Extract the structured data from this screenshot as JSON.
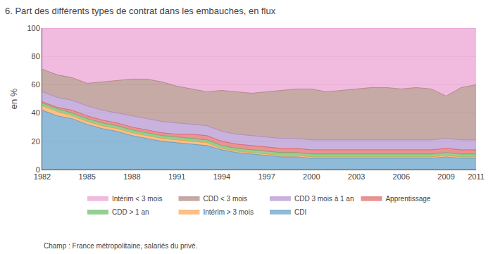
{
  "chart_data": {
    "type": "area",
    "stacked": true,
    "title": "6. Part des différents types de contrat dans les embauches, en flux",
    "ylabel": "en %",
    "annotations": [
      "Champ : France métropolitaine, salariés du privé."
    ],
    "x": [
      1982,
      1983,
      1984,
      1985,
      1986,
      1987,
      1988,
      1989,
      1990,
      1991,
      1992,
      1993,
      1994,
      1995,
      1996,
      1997,
      1998,
      1999,
      2000,
      2001,
      2002,
      2003,
      2004,
      2005,
      2006,
      2007,
      2008,
      2009,
      2010,
      2011
    ],
    "series": [
      {
        "name": "CDI",
        "values": [
          42,
          38,
          36,
          32,
          29,
          27,
          24,
          22,
          20,
          19,
          18,
          17,
          14,
          12,
          11,
          10,
          9,
          9,
          8,
          8,
          8,
          8,
          8,
          8,
          8,
          8,
          8,
          9,
          8,
          8
        ]
      },
      {
        "name": "Intérim > 3 mois",
        "values": [
          3,
          3,
          2,
          2,
          2,
          2,
          2,
          2,
          2,
          2,
          2,
          2,
          1,
          1,
          1,
          1,
          1,
          1,
          1,
          1,
          1,
          1,
          1,
          1,
          1,
          1,
          1,
          1,
          1,
          1
        ]
      },
      {
        "name": "CDD > 1 an",
        "values": [
          2,
          2,
          2,
          2,
          2,
          2,
          2,
          2,
          2,
          2,
          2,
          2,
          2,
          2,
          2,
          2,
          2,
          2,
          2,
          2,
          2,
          2,
          2,
          2,
          2,
          2,
          2,
          2,
          2,
          2
        ]
      },
      {
        "name": "Apprentissage",
        "values": [
          1,
          1,
          2,
          2,
          2,
          2,
          2,
          2,
          2,
          2,
          3,
          3,
          3,
          3,
          3,
          3,
          3,
          3,
          3,
          3,
          3,
          3,
          3,
          3,
          3,
          3,
          3,
          3,
          3,
          3
        ]
      },
      {
        "name": "CDD 3 mois à 1 an",
        "values": [
          7,
          7,
          7,
          7,
          7,
          7,
          8,
          8,
          8,
          8,
          7,
          7,
          7,
          7,
          7,
          7,
          7,
          7,
          7,
          7,
          7,
          7,
          7,
          7,
          7,
          7,
          7,
          7,
          7,
          7
        ]
      },
      {
        "name": "CDD < 3 mois",
        "values": [
          16,
          16,
          16,
          16,
          20,
          23,
          26,
          28,
          28,
          26,
          25,
          24,
          29,
          30,
          30,
          32,
          34,
          35,
          36,
          34,
          35,
          36,
          37,
          37,
          36,
          37,
          36,
          30,
          37,
          39
        ]
      },
      {
        "name": "Intérim < 3 mois",
        "values": [
          29,
          33,
          35,
          39,
          38,
          37,
          36,
          36,
          38,
          41,
          43,
          45,
          44,
          45,
          46,
          45,
          44,
          43,
          43,
          45,
          44,
          43,
          42,
          42,
          43,
          42,
          43,
          48,
          42,
          40
        ]
      }
    ],
    "xlim": [
      1982,
      2011
    ],
    "xticks": [
      1982,
      1985,
      1988,
      1991,
      1994,
      1997,
      2000,
      2003,
      2006,
      2009,
      2011
    ],
    "ylim": [
      0,
      100
    ],
    "yticks": [
      0,
      20,
      40,
      60,
      80,
      100
    ],
    "grid": true,
    "legend": "bottom"
  }
}
